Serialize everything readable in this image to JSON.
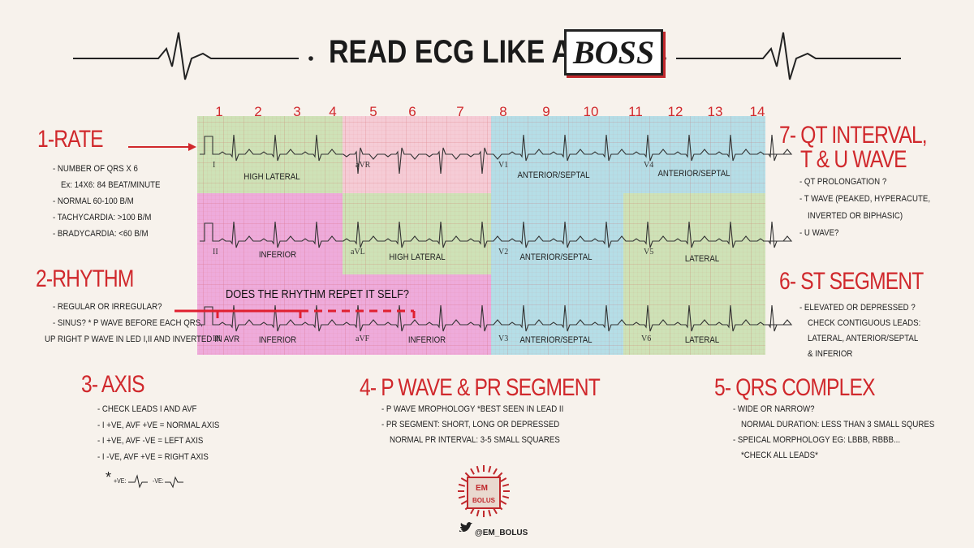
{
  "header": {
    "title": "READ ECG LIKE A",
    "title_emphasis": "BOSS"
  },
  "ecg": {
    "beat_numbers": [
      "1",
      "2",
      "3",
      "4",
      "5",
      "6",
      "7",
      "8",
      "9",
      "10",
      "11",
      "12",
      "13",
      "14"
    ],
    "leads": [
      "I",
      "aVR",
      "V1",
      "V4",
      "II",
      "aVL",
      "V2",
      "V5",
      "III",
      "aVF",
      "V3",
      "V6"
    ],
    "regions": [
      "HIGH LATERAL",
      "ANTERIOR/SEPTAL",
      "ANTERIOR/SEPTAL",
      "INFERIOR",
      "HIGH LATERAL",
      "ANTERIOR/SEPTAL",
      "LATERAL",
      "INFERIOR",
      "INFERIOR",
      "ANTERIOR/SEPTAL",
      "LATERAL"
    ],
    "rhythm_question": "DOES THE RHYTHM REPET IT SELF?"
  },
  "sections": [
    {
      "heading": "1-RATE",
      "items": [
        "- NUMBER OF QRS X 6",
        "Ex: 14X6: 84 BEAT/MINUTE",
        "- NORMAL 60-100 B/M",
        "- TACHYCARDIA: >100 B/M",
        "- BRADYCARDIA: <60 B/M"
      ]
    },
    {
      "heading": "2-RHYTHM",
      "items": [
        "- REGULAR OR IRREGULAR?",
        "- SINUS? * P WAVE BEFORE EACH QRS,",
        "UP RIGHT P WAVE IN LED I,II AND INVERTED IN AVR"
      ]
    },
    {
      "heading": "3- AXIS",
      "items": [
        "- CHECK LEADS I AND AVF",
        "- I +VE, AVF +VE = NORMAL AXIS",
        "- I +VE, AVF -VE = LEFT AXIS",
        "- I -VE, AVF +VE = RIGHT AXIS"
      ],
      "footnote": [
        "*",
        "+VE:",
        "-VE:"
      ]
    },
    {
      "heading": "4- P WAVE & PR SEGMENT",
      "items": [
        "- P WAVE MROPHOLOGY *BEST SEEN IN LEAD II",
        "- PR SEGMENT: SHORT, LONG OR DEPRESSED",
        "NORMAL PR INTERVAL: 3-5 SMALL SQUARES"
      ]
    },
    {
      "heading": "5- QRS COMPLEX",
      "items": [
        "- WIDE OR NARROW?",
        "NORMAL DURATION: LESS THAN 3 SMALL SQURES",
        "- SPEICAL MORPHOLOGY EG: LBBB, RBBB...",
        "*CHECK ALL LEADS*"
      ]
    },
    {
      "heading": "6- ST SEGMENT",
      "items": [
        "- ELEVATED OR DEPRESSED ?",
        "CHECK CONTIGUOUS LEADS:",
        "LATERAL, ANTERIOR/SEPTAL",
        "& INFERIOR"
      ]
    },
    {
      "heading": "7- QT INTERVAL,",
      "heading_2": "T & U WAVE",
      "items": [
        "- QT PROLONGATION ?",
        "- T WAVE (PEAKED, HYPERACUTE,",
        "INVERTED OR BIPHASIC)",
        "- U WAVE?"
      ]
    }
  ],
  "logo": {
    "line_1": "EM",
    "line_2": "BOLUS",
    "handle": "@EM_BOLUS"
  }
}
